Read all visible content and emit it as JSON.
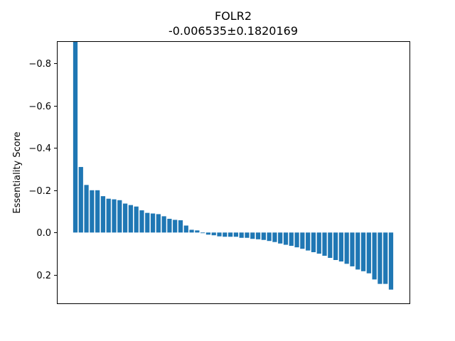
{
  "chart_data": {
    "type": "bar",
    "title": "FOLR2",
    "subtitle": "-0.006535±0.1820169",
    "xlabel": "",
    "ylabel": "Essentiality Score",
    "y_inverted": true,
    "ylim": [
      0.335,
      -0.905
    ],
    "yticks": [
      -0.8,
      -0.6,
      -0.4,
      -0.2,
      0.0,
      0.2
    ],
    "ytick_labels": [
      "−0.8",
      "−0.6",
      "−0.4",
      "−0.2",
      "0.0",
      "0.2"
    ],
    "grid": false,
    "bar_color": "#1f77b4",
    "values": [
      -0.905,
      -0.31,
      -0.225,
      -0.2,
      -0.2,
      -0.172,
      -0.16,
      -0.157,
      -0.153,
      -0.137,
      -0.13,
      -0.123,
      -0.105,
      -0.093,
      -0.09,
      -0.087,
      -0.077,
      -0.065,
      -0.06,
      -0.058,
      -0.033,
      -0.013,
      -0.01,
      0.003,
      0.01,
      0.013,
      0.018,
      0.02,
      0.02,
      0.02,
      0.025,
      0.025,
      0.03,
      0.032,
      0.035,
      0.04,
      0.045,
      0.052,
      0.058,
      0.063,
      0.07,
      0.077,
      0.085,
      0.093,
      0.1,
      0.11,
      0.12,
      0.13,
      0.137,
      0.148,
      0.16,
      0.175,
      0.183,
      0.193,
      0.222,
      0.243,
      0.243,
      0.27
    ]
  }
}
